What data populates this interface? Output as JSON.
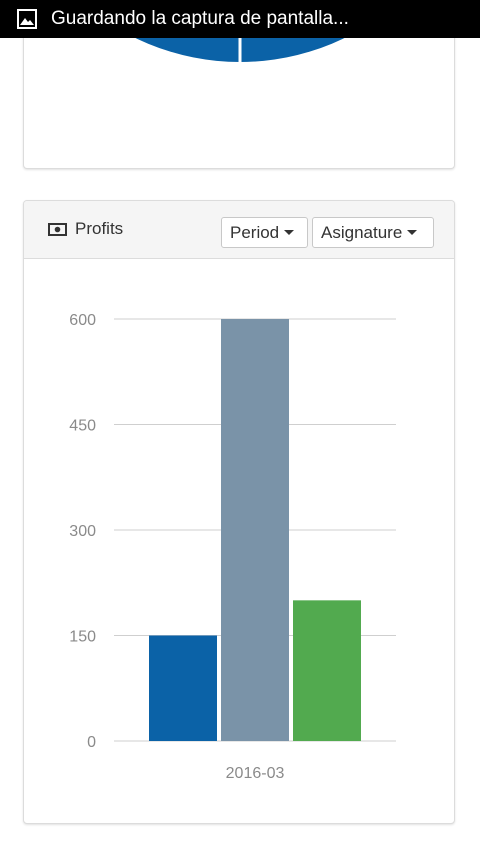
{
  "status_bar": {
    "notification_icon": "image-icon",
    "notification_text": "Guardando la captura de pantalla..."
  },
  "top_card": {
    "partial_chart": "pie",
    "color": "#0b62a7"
  },
  "profits_card": {
    "title": "Profits",
    "title_icon": "money-icon",
    "period_label": "Period",
    "asignature_label": "Asignature"
  },
  "chart_data": {
    "type": "bar",
    "categories": [
      "2016-03"
    ],
    "series": [
      {
        "values": [
          150
        ],
        "color": "#0b62a7"
      },
      {
        "values": [
          600
        ],
        "color": "#7a93a8"
      },
      {
        "values": [
          200
        ],
        "color": "#52aa4f"
      }
    ],
    "y_ticks": [
      0,
      150,
      300,
      450,
      600
    ],
    "ylim": [
      0,
      600
    ],
    "grid": true
  }
}
